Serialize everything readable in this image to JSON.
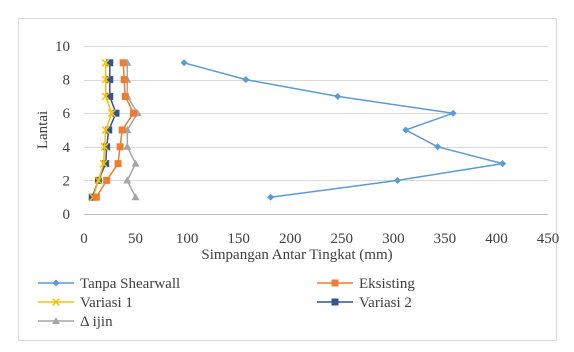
{
  "chart_data": {
    "type": "line",
    "title": "",
    "xlabel": "Simpangan Antar Tingkat (mm)",
    "ylabel": "Lantai",
    "xlim": [
      0,
      450
    ],
    "ylim": [
      0,
      10
    ],
    "x_ticks": [
      0,
      50,
      100,
      150,
      200,
      250,
      300,
      350,
      400,
      450
    ],
    "y_ticks": [
      0,
      2,
      4,
      6,
      8,
      10
    ],
    "grid": "horizontal",
    "legend_position": "bottom",
    "series": [
      {
        "name": "Tanpa Shearwall",
        "color": "#5B9BD5",
        "marker": "diamond",
        "points": [
          [
            181,
            1
          ],
          [
            304,
            2
          ],
          [
            406,
            3
          ],
          [
            343,
            4
          ],
          [
            312,
            5
          ],
          [
            358,
            6
          ],
          [
            246,
            7
          ],
          [
            157,
            8
          ],
          [
            97,
            9
          ]
        ]
      },
      {
        "name": "Eksisting",
        "color": "#ED7D31",
        "marker": "square",
        "points": [
          [
            12,
            1
          ],
          [
            22,
            2
          ],
          [
            33,
            3
          ],
          [
            35,
            4
          ],
          [
            37,
            5
          ],
          [
            48,
            6
          ],
          [
            40,
            7
          ],
          [
            39,
            8
          ],
          [
            38,
            9
          ]
        ]
      },
      {
        "name": "Variasi 1",
        "color": "#FFC000",
        "marker": "x",
        "points": [
          [
            9,
            1
          ],
          [
            14,
            2
          ],
          [
            19,
            3
          ],
          [
            20,
            4
          ],
          [
            21,
            5
          ],
          [
            27,
            6
          ],
          [
            21,
            7
          ],
          [
            21,
            8
          ],
          [
            21,
            9
          ]
        ]
      },
      {
        "name": "Variasi 2",
        "color": "#2F5597",
        "marker": "square",
        "points": [
          [
            8,
            1
          ],
          [
            14,
            2
          ],
          [
            21,
            3
          ],
          [
            22,
            4
          ],
          [
            24,
            5
          ],
          [
            31,
            6
          ],
          [
            25,
            7
          ],
          [
            25,
            8
          ],
          [
            25,
            9
          ]
        ]
      },
      {
        "name": "Δ ijin",
        "color": "#A5A5A5",
        "marker": "triangle",
        "points": [
          [
            50,
            1
          ],
          [
            42,
            2
          ],
          [
            50,
            3
          ],
          [
            42,
            4
          ],
          [
            42,
            5
          ],
          [
            52,
            6
          ],
          [
            42,
            7
          ],
          [
            42,
            8
          ],
          [
            42,
            9
          ]
        ]
      }
    ]
  }
}
